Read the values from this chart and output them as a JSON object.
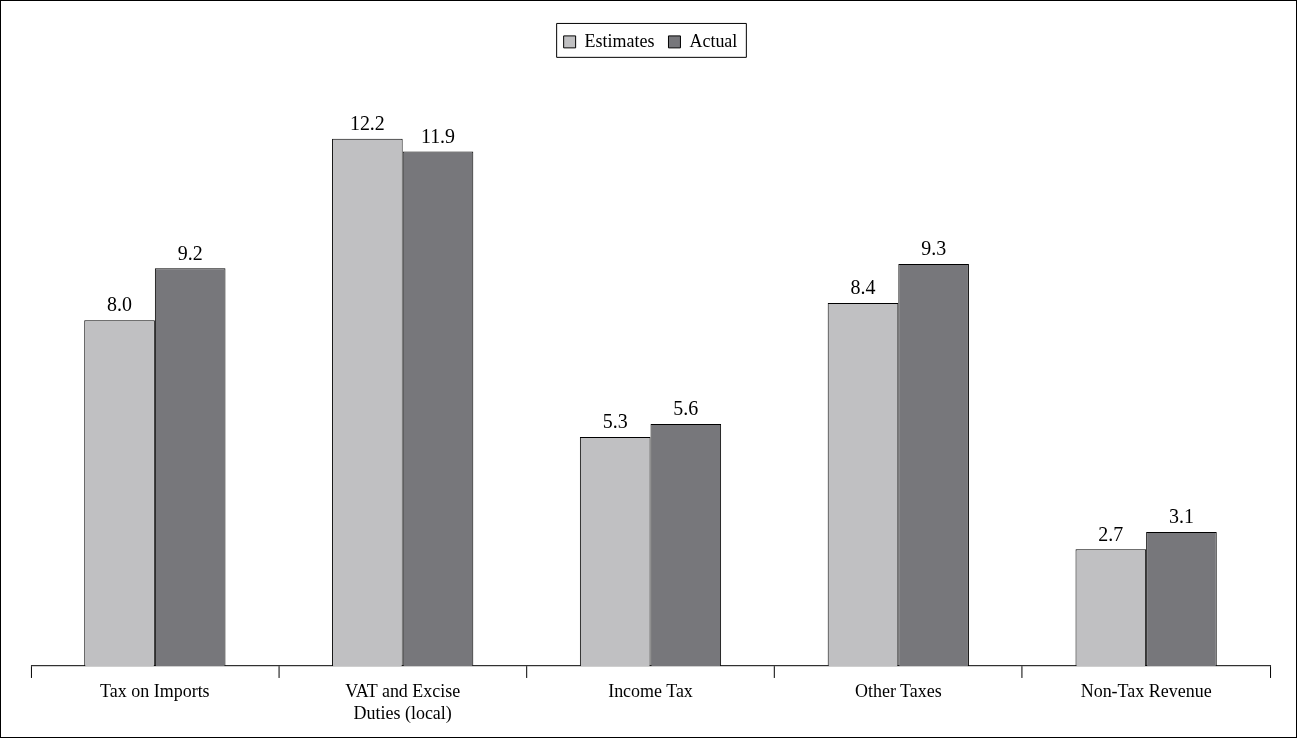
{
  "chart_data": {
    "type": "bar",
    "categories": [
      "Tax on Imports",
      "VAT and Excise Duties (local)",
      "Income Tax",
      "Other Taxes",
      "Non-Tax Revenue"
    ],
    "series": [
      {
        "name": "Estimates",
        "color": "#c0c0c2",
        "values": [
          8.0,
          12.2,
          5.3,
          8.4,
          2.7
        ],
        "value_labels": [
          "8.0",
          "12.2",
          "5.3",
          "8.4",
          "2.7"
        ]
      },
      {
        "name": "Actual",
        "color": "#77777b",
        "values": [
          9.2,
          11.9,
          5.6,
          9.3,
          3.1
        ],
        "value_labels": [
          "9.2",
          "11.9",
          "5.6",
          "9.3",
          "3.1"
        ]
      }
    ],
    "legend": "top",
    "grid": false
  }
}
